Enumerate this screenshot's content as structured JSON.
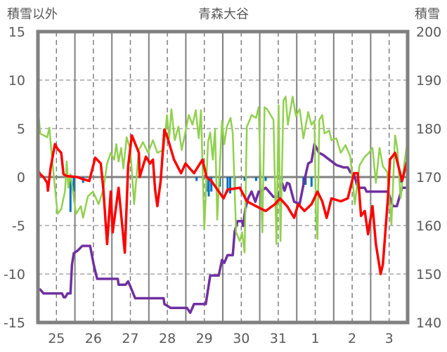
{
  "chart_data": {
    "type": "line",
    "title": "青森大谷",
    "ylabel_left": "積雪以外",
    "ylabel_right": "積雪",
    "x_unit": "days since the start of day 25",
    "xlim": [
      0,
      10
    ],
    "xtick_labels": [
      "25",
      "26",
      "27",
      "28",
      "29",
      "30",
      "31",
      "1",
      "2",
      "3"
    ],
    "ylim_left": [
      -15,
      15
    ],
    "yticks_left": [
      "15",
      "10",
      "5",
      "0",
      "-5",
      "-10",
      "-15"
    ],
    "ylim_right": [
      140,
      200
    ],
    "yticks_right": [
      "200",
      "190",
      "180",
      "170",
      "160",
      "150",
      "140"
    ],
    "grid": true,
    "legend": "none",
    "series": [
      {
        "name": "red-series",
        "axis": "left",
        "color": "#ff0000",
        "kind": "line",
        "points": [
          [
            0,
            0.7
          ],
          [
            0.06,
            0.3
          ],
          [
            0.15,
            0
          ],
          [
            0.25,
            -0.6
          ],
          [
            0.27,
            -1.4
          ],
          [
            0.34,
            0.9
          ],
          [
            0.46,
            3.4
          ],
          [
            0.53,
            2.9
          ],
          [
            0.63,
            2.5
          ],
          [
            0.69,
            0.3
          ],
          [
            0.78,
            0.1
          ],
          [
            1.07,
            0
          ],
          [
            1.2,
            -0.2
          ],
          [
            1.39,
            -0.4
          ],
          [
            1.55,
            2
          ],
          [
            1.7,
            1.4
          ],
          [
            1.77,
            -1.3
          ],
          [
            1.87,
            -6.9
          ],
          [
            1.97,
            -1.5
          ],
          [
            2.02,
            -5.7
          ],
          [
            2.18,
            -1.1
          ],
          [
            2.35,
            -7.8
          ],
          [
            2.44,
            1.1
          ],
          [
            2.54,
            4.3
          ],
          [
            2.73,
            2.5
          ],
          [
            2.75,
            0
          ],
          [
            2.92,
            2.1
          ],
          [
            3.03,
            1.4
          ],
          [
            3.11,
            1.8
          ],
          [
            3.17,
            -1.3
          ],
          [
            3.23,
            -3
          ],
          [
            3.32,
            -0.4
          ],
          [
            3.42,
            4.9
          ],
          [
            3.51,
            4
          ],
          [
            3.68,
            1.8
          ],
          [
            3.87,
            0.4
          ],
          [
            3.99,
            1.4
          ],
          [
            4.22,
            0.4
          ],
          [
            4.45,
            1.8
          ],
          [
            4.56,
            0
          ],
          [
            4.69,
            -0.4
          ],
          [
            5.02,
            -2.2
          ],
          [
            5.13,
            -1.3
          ],
          [
            5.46,
            -1.1
          ],
          [
            5.65,
            -2.5
          ],
          [
            5.9,
            -3
          ],
          [
            6.16,
            -3.5
          ],
          [
            6.41,
            -2.8
          ],
          [
            6.55,
            -2.2
          ],
          [
            6.74,
            -3
          ],
          [
            6.93,
            -4.2
          ],
          [
            7.04,
            -2.8
          ],
          [
            7.21,
            -3.5
          ],
          [
            7.4,
            -2.8
          ],
          [
            7.56,
            -1.5
          ],
          [
            7.69,
            -2.5
          ],
          [
            7.81,
            -4.2
          ],
          [
            7.94,
            -2.2
          ],
          [
            8.19,
            -2.5
          ],
          [
            8.38,
            -2.2
          ],
          [
            8.55,
            0.4
          ],
          [
            8.65,
            0.4
          ],
          [
            8.74,
            -4
          ],
          [
            8.84,
            -3.5
          ],
          [
            8.93,
            -5.9
          ],
          [
            9.05,
            -3
          ],
          [
            9.14,
            -6.9
          ],
          [
            9.27,
            -10
          ],
          [
            9.33,
            -9
          ],
          [
            9.47,
            -2
          ],
          [
            9.52,
            1.8
          ],
          [
            9.66,
            2.5
          ],
          [
            9.85,
            -0.4
          ],
          [
            9.98,
            1.6
          ]
        ]
      },
      {
        "name": "green-series",
        "axis": "left",
        "color": "#92d050",
        "kind": "line",
        "points": [
          [
            0,
            7.2
          ],
          [
            0.06,
            4.5
          ],
          [
            0.25,
            4.1
          ],
          [
            0.31,
            5.1
          ],
          [
            0.36,
            2.8
          ],
          [
            0.53,
            -3.8
          ],
          [
            0.63,
            -3.3
          ],
          [
            0.73,
            -1.5
          ],
          [
            0.78,
            1.6
          ],
          [
            0.82,
            -1.1
          ],
          [
            0.88,
            0.3
          ],
          [
            1.03,
            -3.8
          ],
          [
            1.16,
            -3
          ],
          [
            1.22,
            -4.2
          ],
          [
            1.35,
            -2
          ],
          [
            1.49,
            -1.5
          ],
          [
            1.64,
            -2.8
          ],
          [
            1.77,
            -1.3
          ],
          [
            1.87,
            1.4
          ],
          [
            1.97,
            2.5
          ],
          [
            2.06,
            1.8
          ],
          [
            2.12,
            3.4
          ],
          [
            2.18,
            1.6
          ],
          [
            2.25,
            3
          ],
          [
            2.31,
            0.9
          ],
          [
            2.4,
            4.1
          ],
          [
            2.5,
            2.8
          ],
          [
            2.6,
            -2.8
          ],
          [
            2.73,
            2.8
          ],
          [
            2.84,
            3.6
          ],
          [
            2.98,
            2.5
          ],
          [
            3.11,
            3.8
          ],
          [
            3.23,
            2.5
          ],
          [
            3.4,
            2.8
          ],
          [
            3.49,
            6.4
          ],
          [
            3.55,
            4
          ],
          [
            3.61,
            7
          ],
          [
            3.7,
            3.8
          ],
          [
            3.8,
            5.2
          ],
          [
            3.89,
            2.8
          ],
          [
            4.08,
            6.4
          ],
          [
            4.18,
            5.4
          ],
          [
            4.27,
            6.9
          ],
          [
            4.35,
            4
          ],
          [
            4.41,
            6.9
          ],
          [
            4.5,
            -5.4
          ],
          [
            4.6,
            3.6
          ],
          [
            4.66,
            4.6
          ],
          [
            4.73,
            1.8
          ],
          [
            4.79,
            5
          ],
          [
            4.85,
            -4.4
          ],
          [
            4.98,
            5.8
          ],
          [
            5.04,
            3.4
          ],
          [
            5.11,
            5.2
          ],
          [
            5.21,
            6.1
          ],
          [
            5.27,
            4.5
          ],
          [
            5.36,
            -5.7
          ],
          [
            5.46,
            -6.6
          ],
          [
            5.52,
            -5.7
          ],
          [
            5.59,
            -7.8
          ],
          [
            5.65,
            5.2
          ],
          [
            5.71,
            5.7
          ],
          [
            5.78,
            6.4
          ],
          [
            5.9,
            6.1
          ],
          [
            5.97,
            7.2
          ],
          [
            6.07,
            -5.7
          ],
          [
            6.13,
            7.2
          ],
          [
            6.2,
            7
          ],
          [
            6.37,
            5.9
          ],
          [
            6.45,
            -6.9
          ],
          [
            6.51,
            7.4
          ],
          [
            6.56,
            -6.6
          ],
          [
            6.64,
            7.9
          ],
          [
            6.7,
            8.3
          ],
          [
            6.76,
            5.4
          ],
          [
            6.89,
            8.3
          ],
          [
            6.98,
            6.3
          ],
          [
            7.08,
            7
          ],
          [
            7.18,
            4
          ],
          [
            7.31,
            6.7
          ],
          [
            7.4,
            5.4
          ],
          [
            7.48,
            5.8
          ],
          [
            7.52,
            -4
          ],
          [
            7.56,
            -6.4
          ],
          [
            7.61,
            5.9
          ],
          [
            7.69,
            6.4
          ],
          [
            7.75,
            4.5
          ],
          [
            7.88,
            4.8
          ],
          [
            7.94,
            3.8
          ],
          [
            8.07,
            4
          ],
          [
            8.19,
            2.5
          ],
          [
            8.32,
            3.3
          ],
          [
            8.45,
            2.1
          ],
          [
            8.57,
            -2.8
          ],
          [
            8.7,
            1.2
          ],
          [
            8.84,
            2.1
          ],
          [
            8.93,
            2.4
          ],
          [
            9.05,
            3
          ],
          [
            9.14,
            -0.6
          ],
          [
            9.24,
            3
          ],
          [
            9.33,
            1.1
          ],
          [
            9.45,
            0.5
          ],
          [
            9.56,
            -4.9
          ],
          [
            9.66,
            4.3
          ],
          [
            9.72,
            3
          ],
          [
            9.81,
            -2.2
          ],
          [
            9.9,
            1.1
          ],
          [
            10,
            3.8
          ]
        ]
      },
      {
        "name": "snow-depth",
        "axis": "right",
        "color": "#7030a0",
        "kind": "line",
        "points": [
          [
            0,
            146.8
          ],
          [
            0.06,
            146.8
          ],
          [
            0.15,
            146
          ],
          [
            0.65,
            146
          ],
          [
            0.7,
            145.2
          ],
          [
            0.74,
            145.2
          ],
          [
            0.8,
            146
          ],
          [
            0.88,
            146
          ],
          [
            0.92,
            151.9
          ],
          [
            0.97,
            154.3
          ],
          [
            1.07,
            154.8
          ],
          [
            1.2,
            155.8
          ],
          [
            1.41,
            155.8
          ],
          [
            1.51,
            151.9
          ],
          [
            1.6,
            149
          ],
          [
            2.16,
            149
          ],
          [
            2.18,
            147.8
          ],
          [
            2.37,
            147.8
          ],
          [
            2.44,
            148.5
          ],
          [
            2.54,
            146.7
          ],
          [
            2.63,
            145
          ],
          [
            3.4,
            145
          ],
          [
            3.42,
            143.8
          ],
          [
            3.59,
            143
          ],
          [
            4.03,
            143
          ],
          [
            4.12,
            142
          ],
          [
            4.22,
            143.8
          ],
          [
            4.54,
            143.8
          ],
          [
            4.66,
            149.7
          ],
          [
            4.89,
            149.7
          ],
          [
            4.98,
            152.9
          ],
          [
            5.04,
            152.3
          ],
          [
            5.13,
            153.9
          ],
          [
            5.27,
            153.9
          ],
          [
            5.32,
            158.7
          ],
          [
            5.4,
            160.9
          ],
          [
            5.52,
            160.9
          ],
          [
            5.55,
            159.9
          ],
          [
            5.61,
            163.5
          ],
          [
            5.69,
            165.7
          ],
          [
            5.78,
            167
          ],
          [
            5.88,
            164.9
          ],
          [
            5.97,
            167
          ],
          [
            6.03,
            167
          ],
          [
            6.16,
            167.8
          ],
          [
            6.37,
            165.9
          ],
          [
            6.5,
            165.9
          ],
          [
            6.6,
            168.8
          ],
          [
            6.67,
            167.2
          ],
          [
            6.74,
            168.8
          ],
          [
            6.8,
            168.6
          ],
          [
            6.93,
            164.9
          ],
          [
            7.08,
            164.5
          ],
          [
            7.18,
            168.4
          ],
          [
            7.31,
            172.8
          ],
          [
            7.4,
            173.2
          ],
          [
            7.48,
            176.8
          ],
          [
            7.6,
            175
          ],
          [
            7.71,
            174.6
          ],
          [
            7.88,
            173.6
          ],
          [
            8.07,
            172.5
          ],
          [
            8.26,
            172
          ],
          [
            8.38,
            172
          ],
          [
            8.45,
            171
          ],
          [
            8.55,
            170.6
          ],
          [
            8.65,
            167.8
          ],
          [
            8.84,
            167.8
          ],
          [
            8.89,
            167
          ],
          [
            9.47,
            167
          ],
          [
            9.6,
            164
          ],
          [
            9.71,
            164
          ],
          [
            9.85,
            167.8
          ],
          [
            10,
            167.8
          ]
        ]
      },
      {
        "name": "blue-bars",
        "axis": "left",
        "color": "#0070c0",
        "kind": "bar",
        "points": [
          [
            0.88,
            -3.6
          ],
          [
            0.97,
            -1.5
          ],
          [
            1.22,
            -0.6
          ],
          [
            4.29,
            -0.4
          ],
          [
            4.56,
            -1.5
          ],
          [
            4.62,
            -2
          ],
          [
            4.69,
            -1.5
          ],
          [
            4.92,
            -1
          ],
          [
            5.13,
            -1.6
          ],
          [
            5.2,
            -1.7
          ],
          [
            5.32,
            -1.4
          ],
          [
            5.59,
            -0.4
          ],
          [
            5.9,
            -0.4
          ],
          [
            6.16,
            -0.4
          ],
          [
            6.6,
            -0.4
          ],
          [
            7.18,
            -1
          ],
          [
            7.24,
            -0.8
          ],
          [
            7.4,
            -1
          ],
          [
            9.81,
            -0.6
          ]
        ]
      }
    ]
  }
}
